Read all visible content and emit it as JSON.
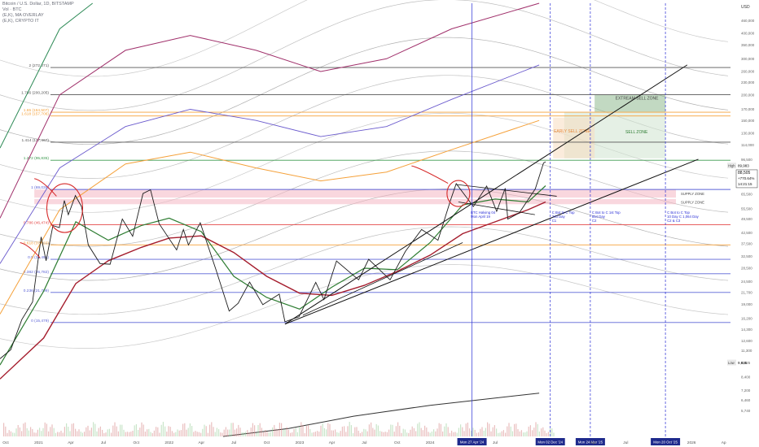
{
  "header": {
    "symbol": "Bitcoin / U.S. Dollar, 1D, BITSTAMP",
    "line2": "Vol · BTC",
    "line3": "(E,K), MA OVERLAY",
    "line4": "(E,K), CRYPTO IT"
  },
  "currency": "USD",
  "chart_data": {
    "type": "line",
    "scale": "log",
    "series_name": "Bitcoin / U.S. Dollar",
    "y_ticks": [
      4300,
      5740,
      6460,
      7200,
      8400,
      9825,
      11300,
      12600,
      14300,
      16200,
      19000,
      21700,
      24500,
      28500,
      32500,
      37500,
      42500,
      49500,
      55500,
      65500,
      73000,
      78900,
      85000,
      96500,
      114000,
      130000,
      150000,
      170000,
      200000,
      230000,
      260000,
      300000,
      350000,
      400000,
      460000,
      525000
    ],
    "y_tick_labels": [
      "4,300",
      "5,740",
      "6,460",
      "7,200",
      "8,400",
      "9,825",
      "11,300",
      "12,600",
      "14,300",
      "16,200",
      "19,000",
      "21,700",
      "24,500",
      "28,500",
      "32,500",
      "37,500",
      "42,500",
      "49,500",
      "55,500",
      "65,500",
      "73,000",
      "78,900",
      "85,000",
      "96,500",
      "114,000",
      "130,000",
      "150,000",
      "170,000",
      "200,000",
      "230,000",
      "260,000",
      "300,000",
      "350,000",
      "400,000",
      "460,000",
      "525,000"
    ],
    "x_ticks": [
      {
        "date": "2020-10-01",
        "label": "Oct"
      },
      {
        "date": "2021-01-01",
        "label": "2021"
      },
      {
        "date": "2021-04-01",
        "label": "Apr"
      },
      {
        "date": "2021-07-01",
        "label": "Jul"
      },
      {
        "date": "2021-10-01",
        "label": "Oct"
      },
      {
        "date": "2022-01-01",
        "label": "2022"
      },
      {
        "date": "2022-04-01",
        "label": "Apr"
      },
      {
        "date": "2022-07-01",
        "label": "Jul"
      },
      {
        "date": "2022-10-01",
        "label": "Oct"
      },
      {
        "date": "2023-01-01",
        "label": "2023"
      },
      {
        "date": "2023-04-01",
        "label": "Apr"
      },
      {
        "date": "2023-07-01",
        "label": "Jul"
      },
      {
        "date": "2023-10-01",
        "label": "Oct"
      },
      {
        "date": "2024-01-01",
        "label": "2024"
      },
      {
        "date": "2024-07-01",
        "label": "Jul"
      },
      {
        "date": "2025-04-01",
        "label": "Apr"
      },
      {
        "date": "2025-07-01",
        "label": "Jul"
      },
      {
        "date": "2026-01-01",
        "label": "2026"
      },
      {
        "date": "2026-04-01",
        "label": "Ap"
      }
    ],
    "x_range": [
      "2020-09-15",
      "2026-04-20"
    ],
    "y_range": [
      4300,
      560000
    ],
    "price": [
      [
        "2020-09-15",
        10300
      ],
      [
        "2020-10-15",
        11400
      ],
      [
        "2020-11-15",
        16000
      ],
      [
        "2020-12-15",
        19500
      ],
      [
        "2021-01-08",
        40500
      ],
      [
        "2021-01-22",
        31000
      ],
      [
        "2021-02-10",
        46000
      ],
      [
        "2021-02-28",
        45000
      ],
      [
        "2021-03-14",
        61000
      ],
      [
        "2021-03-25",
        52000
      ],
      [
        "2021-04-14",
        64500
      ],
      [
        "2021-05-01",
        57000
      ],
      [
        "2021-05-20",
        37000
      ],
      [
        "2021-06-22",
        30000
      ],
      [
        "2021-07-20",
        29800
      ],
      [
        "2021-08-23",
        49500
      ],
      [
        "2021-09-21",
        40800
      ],
      [
        "2021-10-20",
        66000
      ],
      [
        "2021-11-10",
        68800
      ],
      [
        "2021-12-04",
        47000
      ],
      [
        "2022-01-22",
        35000
      ],
      [
        "2022-02-10",
        44000
      ],
      [
        "2022-02-24",
        37000
      ],
      [
        "2022-03-29",
        47500
      ],
      [
        "2022-05-12",
        28000
      ],
      [
        "2022-06-18",
        17600
      ],
      [
        "2022-07-13",
        19200
      ],
      [
        "2022-08-14",
        24400
      ],
      [
        "2022-09-20",
        18900
      ],
      [
        "2022-11-05",
        21300
      ],
      [
        "2022-11-21",
        15600
      ],
      [
        "2022-12-30",
        16500
      ],
      [
        "2023-02-15",
        24300
      ],
      [
        "2023-03-10",
        20000
      ],
      [
        "2023-04-14",
        30900
      ],
      [
        "2023-06-15",
        25000
      ],
      [
        "2023-07-13",
        31500
      ],
      [
        "2023-09-11",
        25000
      ],
      [
        "2023-10-24",
        34500
      ],
      [
        "2023-12-08",
        44000
      ],
      [
        "2024-01-23",
        39000
      ],
      [
        "2024-02-28",
        62000
      ],
      [
        "2024-03-14",
        73700
      ],
      [
        "2024-05-01",
        57000
      ],
      [
        "2024-06-07",
        71700
      ],
      [
        "2024-07-05",
        54000
      ],
      [
        "2024-07-29",
        70000
      ],
      [
        "2024-08-05",
        49500
      ],
      [
        "2024-09-06",
        53000
      ],
      [
        "2024-10-21",
        69500
      ],
      [
        "2024-11-13",
        93000
      ],
      [
        "2024-11-19",
        94200
      ]
    ],
    "fib_levels": [
      {
        "label": "0 (15,479)",
        "value": 15479,
        "color": "#5b63d6"
      },
      {
        "label": "0.236 (21,709)",
        "value": 21709,
        "color": "#5b63d6"
      },
      {
        "label": "0.382 (26,782)",
        "value": 26782,
        "color": "#5b63d6"
      },
      {
        "label": "0.5 (31,494)",
        "value": 31494,
        "color": "#5b63d6"
      },
      {
        "label": "0.618 (37,022)",
        "value": 37022,
        "color": "#f5a13a"
      },
      {
        "label": "0.786 (46,474)",
        "value": 46474,
        "color": "#e54848"
      },
      {
        "label": "1 (69,039)",
        "value": 69039,
        "color": "#5b63d6"
      },
      {
        "label": "1.272 (95,835)",
        "value": 95835,
        "color": "#3c9a4e"
      },
      {
        "label": "1.414 (117,467)",
        "value": 117467,
        "color": "#555555"
      },
      {
        "label": "1.618 (157,706)",
        "value": 157706,
        "color": "#f5a13a"
      },
      {
        "label": "1.65 (164,507)",
        "value": 164507,
        "color": "#f5a13a"
      },
      {
        "label": "1.786 (200,205)",
        "value": 200205,
        "color": "#555555"
      },
      {
        "label": "2 (272,071)",
        "value": 272071,
        "color": "#555555"
      }
    ],
    "zones": [
      {
        "label": "SUPPLY ZONE",
        "from": 63000,
        "to": 69000,
        "color": "#f4b6c2"
      },
      {
        "label": "SUPPLY ZONE",
        "from": 58500,
        "to": 62000,
        "color": "#f4b6c2"
      },
      {
        "label": "EXTREAM SELL ZONE",
        "from": 165000,
        "to": 200000,
        "color": "#8fb98f"
      },
      {
        "label": "SELL ZONE",
        "from": 98000,
        "to": 165000,
        "color": "#cfe3cf"
      },
      {
        "label": "EARLY SELL ZONE",
        "from": 98000,
        "to": 155000,
        "color": "#f8dcc0"
      }
    ],
    "projections": [
      {
        "label": "C Bot to C Top",
        "sub": "743 Day",
        "sub2": "C1"
      },
      {
        "label": "C Bot to C 1st Top",
        "sub": "854 Day",
        "sub2": "C2"
      },
      {
        "label": "C Bot to C Top",
        "sub": "10 Day C 1,064 Day",
        "sub2": "C2 & C3"
      }
    ],
    "halving_label": "BTC Halving 04",
    "halving_sub": "Mon April 19",
    "vlines": [
      {
        "date": "2024-04-27",
        "label": "Mon 27 Apr '24"
      },
      {
        "date": "2024-12-02",
        "label": "Mon 02 Dec '24"
      },
      {
        "date": "2025-03-24",
        "label": "Mon 24 Mar '25"
      },
      {
        "date": "2025-10-20",
        "label": "Mon 20 Oct '25"
      }
    ],
    "badges": {
      "high_label": "High",
      "high_value": "89,983",
      "price": "88,505",
      "change": "+770.64%",
      "time": "14:21:15",
      "low_label": "Low",
      "low_value": "9,825"
    }
  }
}
